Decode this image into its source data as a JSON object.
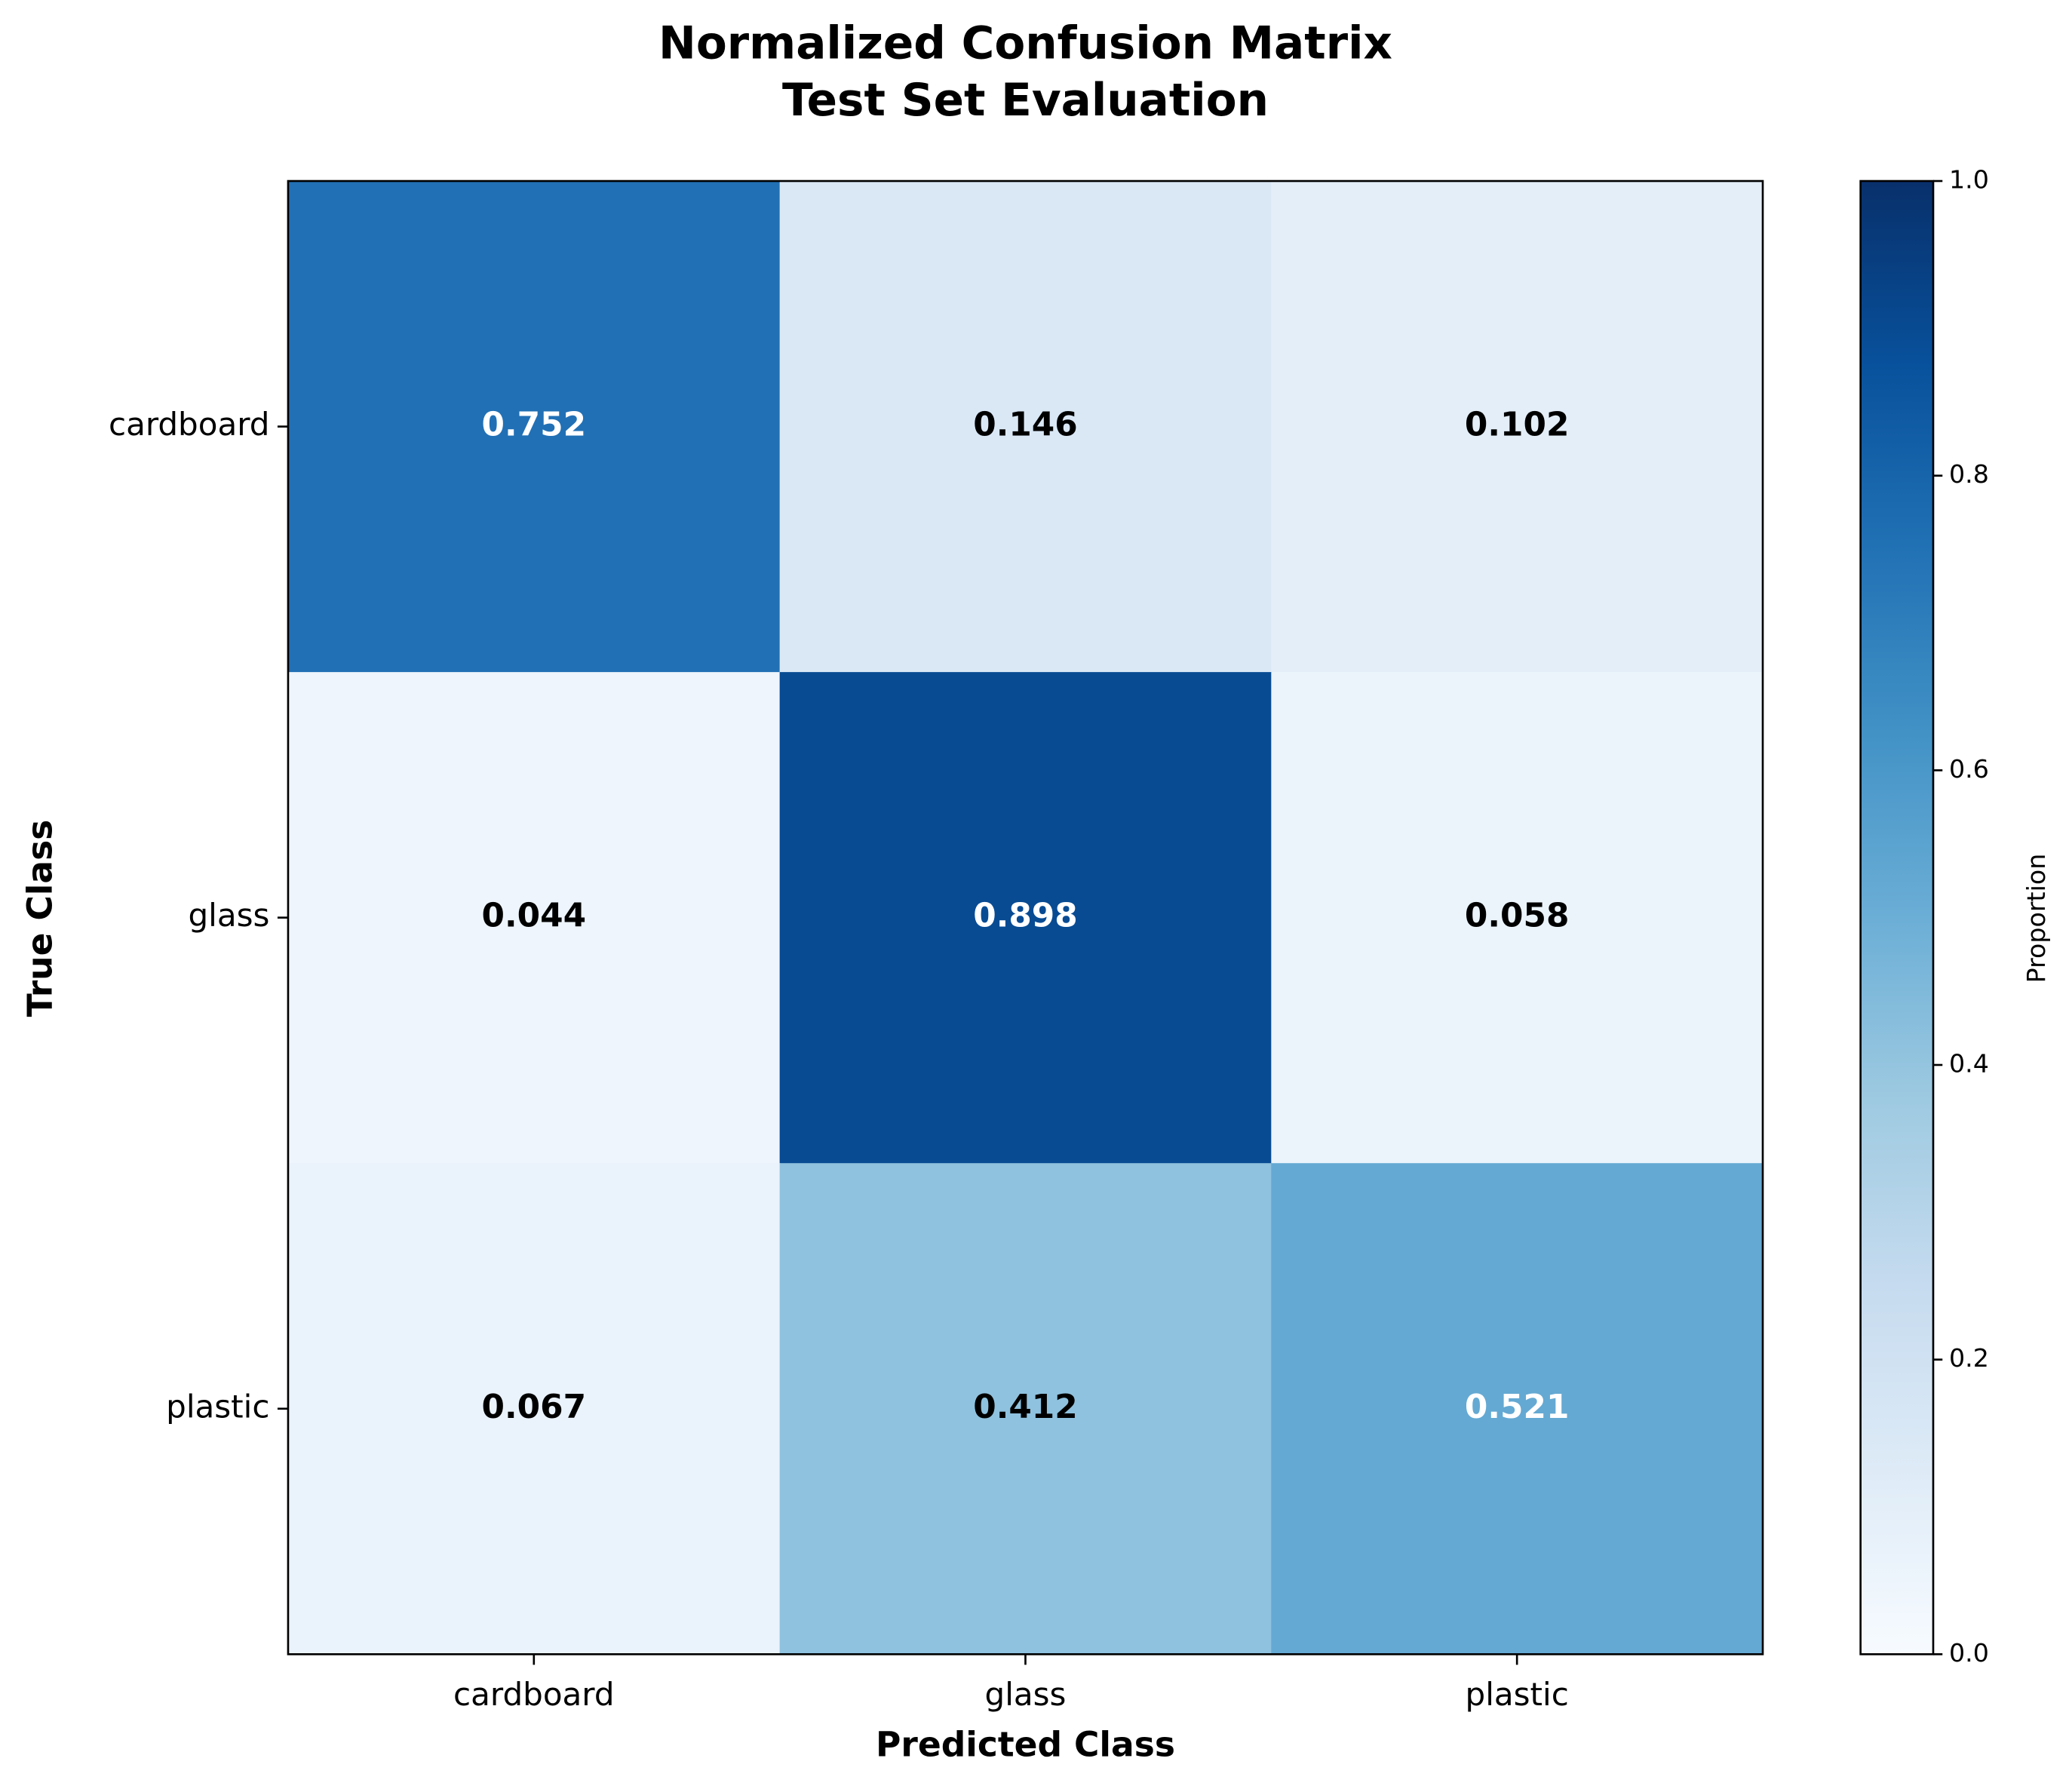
{
  "chart_data": {
    "type": "heatmap",
    "title": "Normalized Confusion Matrix",
    "subtitle": "Test Set Evaluation",
    "x_label": "Predicted Class",
    "y_label": "True Class",
    "x_categories": [
      "cardboard",
      "glass",
      "plastic"
    ],
    "y_categories": [
      "cardboard",
      "glass",
      "plastic"
    ],
    "values": [
      [
        0.752,
        0.146,
        0.102
      ],
      [
        0.044,
        0.898,
        0.058
      ],
      [
        0.067,
        0.412,
        0.521
      ]
    ],
    "colormap": "Blues",
    "colorbar_label": "Proportion",
    "clim": [
      0,
      1
    ],
    "cticks": [
      {
        "value": 0,
        "label": "0.0"
      },
      0.2,
      0.4,
      0.6,
      0.8,
      {
        "value": 1,
        "label": "1.0"
      }
    ]
  }
}
